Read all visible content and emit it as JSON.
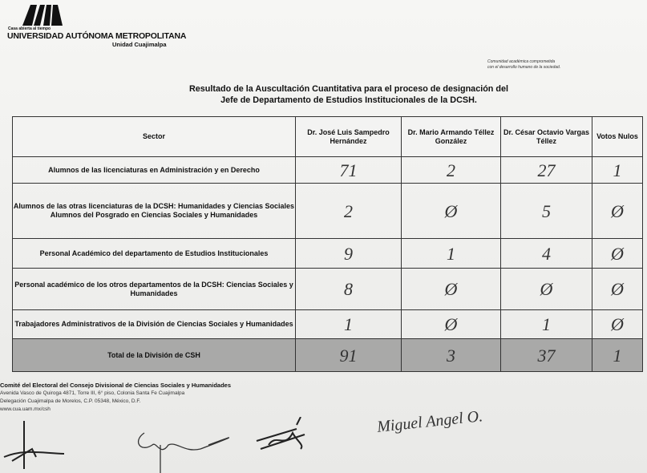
{
  "header": {
    "logo_text": "UAM",
    "motto": "Casa abierta al tiempo",
    "university": "UNIVERSIDAD AUTÓNOMA METROPOLITANA",
    "unit": "Unidad Cuajimalpa",
    "slogan": [
      "Comunidad académica comprometida",
      "con el desarrollo humano de la sociedad."
    ]
  },
  "title": [
    "Resultado de la Auscultación Cuantitativa para el proceso de designación del",
    "Jefe de Departamento de Estudios Institucionales de la DCSH."
  ],
  "table": {
    "headers": [
      "Sector",
      "Dr. José Luis Sampedro Hernández",
      "Dr. Mario Armando Téllez González",
      "Dr. César Octavio Vargas Téllez",
      "Votos Nulos"
    ],
    "rows": [
      {
        "sector": "Alumnos de las licenciaturas en Administración y en Derecho",
        "values": [
          "71",
          "2",
          "27",
          "1"
        ]
      },
      {
        "sector": "Alumnos de las otras licenciaturas de la DCSH: Humanidades y Ciencias Sociales Alumnos del Posgrado en Ciencias Sociales y Humanidades",
        "values": [
          "2",
          "Ø",
          "5",
          "Ø"
        ]
      },
      {
        "sector": "Personal Académico del departamento de Estudios Institucionales",
        "values": [
          "9",
          "1",
          "4",
          "Ø"
        ]
      },
      {
        "sector": "Personal académico de los otros departamentos de la DCSH: Ciencias Sociales y Humanidades",
        "values": [
          "8",
          "Ø",
          "Ø",
          "Ø"
        ]
      },
      {
        "sector": "Trabajadores Administrativos de la División de Ciencias Sociales y Humanidades",
        "values": [
          "1",
          "Ø",
          "1",
          "Ø"
        ]
      }
    ],
    "total": {
      "label": "Total de la División de CSH",
      "values": [
        "91",
        "3",
        "37",
        "1"
      ]
    }
  },
  "footer": {
    "committee": "Comité del Electoral del Consejo Divisional de Ciencias Sociales y Humanidades",
    "address1": "Avenida Vasco de Quiroga 4871, Torre III, 6° piso, Colonia Santa Fe Cuajimalpa",
    "address2": "Delegación Cuajimalpa de Morelos, C.P. 05348, México, D.F.",
    "web": "www.cua.uam.mx/csh"
  },
  "signatures": [
    "Miguel Angel O."
  ]
}
